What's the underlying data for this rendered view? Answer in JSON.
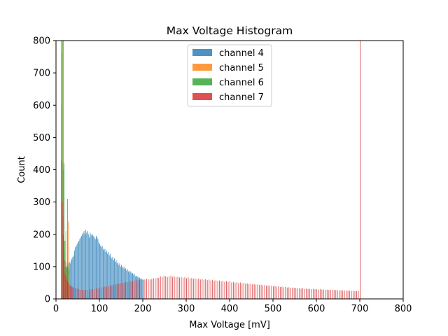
{
  "chart_data": {
    "type": "bar",
    "title": "Max Voltage Histogram",
    "xlabel": "Max Voltage [mV]",
    "ylabel": "Count",
    "xlim": [
      0,
      800
    ],
    "ylim": [
      0,
      800
    ],
    "xticks": [
      "0",
      "100",
      "200",
      "300",
      "400",
      "500",
      "600",
      "700",
      "800"
    ],
    "yticks": [
      "0",
      "100",
      "200",
      "300",
      "400",
      "500",
      "600",
      "700",
      "800"
    ],
    "grid": false,
    "legend_position": "upper center",
    "bin_width": 2,
    "series": [
      {
        "name": "channel 4",
        "color": "#1f77b4",
        "alpha": 0.8,
        "bins": [
          [
            12,
            600
          ],
          [
            14,
            420
          ],
          [
            16,
            260
          ],
          [
            18,
            150
          ],
          [
            20,
            100
          ],
          [
            22,
            95
          ],
          [
            24,
            100
          ],
          [
            26,
            105
          ],
          [
            28,
            110
          ],
          [
            30,
            115
          ],
          [
            32,
            110
          ],
          [
            34,
            120
          ],
          [
            36,
            125
          ],
          [
            38,
            130
          ],
          [
            40,
            135
          ],
          [
            42,
            150
          ],
          [
            44,
            160
          ],
          [
            46,
            165
          ],
          [
            48,
            170
          ],
          [
            50,
            175
          ],
          [
            52,
            180
          ],
          [
            54,
            185
          ],
          [
            56,
            190
          ],
          [
            58,
            195
          ],
          [
            60,
            200
          ],
          [
            62,
            205
          ],
          [
            64,
            210
          ],
          [
            66,
            200
          ],
          [
            68,
            215
          ],
          [
            70,
            205
          ],
          [
            72,
            210
          ],
          [
            74,
            200
          ],
          [
            76,
            190
          ],
          [
            78,
            205
          ],
          [
            80,
            200
          ],
          [
            82,
            195
          ],
          [
            84,
            200
          ],
          [
            86,
            195
          ],
          [
            88,
            190
          ],
          [
            90,
            185
          ],
          [
            92,
            195
          ],
          [
            94,
            190
          ],
          [
            96,
            185
          ],
          [
            98,
            175
          ],
          [
            100,
            170
          ],
          [
            102,
            165
          ],
          [
            104,
            160
          ],
          [
            106,
            165
          ],
          [
            108,
            155
          ],
          [
            110,
            150
          ],
          [
            112,
            155
          ],
          [
            114,
            145
          ],
          [
            116,
            150
          ],
          [
            118,
            140
          ],
          [
            120,
            145
          ],
          [
            122,
            135
          ],
          [
            124,
            140
          ],
          [
            126,
            130
          ],
          [
            128,
            125
          ],
          [
            130,
            130
          ],
          [
            132,
            120
          ],
          [
            134,
            125
          ],
          [
            136,
            115
          ],
          [
            138,
            120
          ],
          [
            140,
            110
          ],
          [
            142,
            115
          ],
          [
            144,
            105
          ],
          [
            146,
            110
          ],
          [
            148,
            100
          ],
          [
            150,
            105
          ],
          [
            152,
            100
          ],
          [
            154,
            95
          ],
          [
            156,
            100
          ],
          [
            158,
            92
          ],
          [
            160,
            95
          ],
          [
            162,
            88
          ],
          [
            164,
            92
          ],
          [
            166,
            85
          ],
          [
            168,
            88
          ],
          [
            170,
            82
          ],
          [
            172,
            85
          ],
          [
            174,
            78
          ],
          [
            176,
            80
          ],
          [
            178,
            75
          ],
          [
            180,
            78
          ],
          [
            182,
            70
          ],
          [
            184,
            72
          ],
          [
            186,
            68
          ],
          [
            188,
            70
          ],
          [
            190,
            65
          ],
          [
            192,
            66
          ],
          [
            194,
            62
          ],
          [
            196,
            64
          ],
          [
            198,
            60
          ],
          [
            200,
            58
          ]
        ]
      },
      {
        "name": "channel 5",
        "color": "#ff7f0e",
        "alpha": 0.8,
        "bins": [
          [
            12,
            760
          ],
          [
            14,
            800
          ],
          [
            16,
            400
          ],
          [
            18,
            180
          ],
          [
            20,
            120
          ],
          [
            22,
            210
          ],
          [
            24,
            90
          ],
          [
            26,
            85
          ],
          [
            28,
            240
          ],
          [
            30,
            80
          ]
        ]
      },
      {
        "name": "channel 6",
        "color": "#2ca02c",
        "alpha": 0.8,
        "bins": [
          [
            12,
            800
          ],
          [
            14,
            800
          ],
          [
            16,
            800
          ],
          [
            18,
            420
          ],
          [
            20,
            180
          ],
          [
            22,
            115
          ],
          [
            24,
            100
          ],
          [
            26,
            310
          ],
          [
            28,
            95
          ],
          [
            30,
            90
          ]
        ]
      },
      {
        "name": "channel 7",
        "color": "#d62728",
        "alpha": 0.8,
        "bins": [
          [
            12,
            430
          ],
          [
            14,
            300
          ],
          [
            16,
            200
          ],
          [
            18,
            120
          ],
          [
            20,
            80
          ],
          [
            22,
            70
          ],
          [
            24,
            60
          ],
          [
            26,
            55
          ],
          [
            28,
            50
          ],
          [
            30,
            45
          ],
          [
            32,
            42
          ],
          [
            34,
            40
          ],
          [
            36,
            38
          ],
          [
            38,
            36
          ],
          [
            40,
            35
          ],
          [
            44,
            34
          ],
          [
            48,
            32
          ],
          [
            52,
            30
          ],
          [
            56,
            28
          ],
          [
            60,
            28
          ],
          [
            64,
            27
          ],
          [
            68,
            28
          ],
          [
            72,
            28
          ],
          [
            76,
            29
          ],
          [
            80,
            30
          ],
          [
            84,
            30
          ],
          [
            88,
            31
          ],
          [
            92,
            32
          ],
          [
            96,
            33
          ],
          [
            100,
            34
          ],
          [
            104,
            35
          ],
          [
            108,
            36
          ],
          [
            112,
            38
          ],
          [
            116,
            38
          ],
          [
            120,
            40
          ],
          [
            124,
            40
          ],
          [
            128,
            42
          ],
          [
            132,
            44
          ],
          [
            136,
            45
          ],
          [
            140,
            46
          ],
          [
            144,
            47
          ],
          [
            148,
            48
          ],
          [
            152,
            50
          ],
          [
            156,
            50
          ],
          [
            160,
            52
          ],
          [
            164,
            52
          ],
          [
            168,
            53
          ],
          [
            172,
            54
          ],
          [
            176,
            55
          ],
          [
            180,
            56
          ],
          [
            184,
            57
          ],
          [
            188,
            58
          ],
          [
            192,
            58
          ],
          [
            196,
            59
          ],
          [
            200,
            60
          ],
          [
            204,
            60
          ],
          [
            208,
            62
          ],
          [
            212,
            61
          ],
          [
            216,
            60
          ],
          [
            220,
            62
          ],
          [
            224,
            64
          ],
          [
            228,
            63
          ],
          [
            232,
            66
          ],
          [
            236,
            65
          ],
          [
            240,
            70
          ],
          [
            244,
            68
          ],
          [
            248,
            72
          ],
          [
            252,
            70
          ],
          [
            256,
            68
          ],
          [
            260,
            70
          ],
          [
            264,
            72
          ],
          [
            268,
            68
          ],
          [
            272,
            70
          ],
          [
            276,
            67
          ],
          [
            280,
            69
          ],
          [
            284,
            66
          ],
          [
            288,
            68
          ],
          [
            292,
            65
          ],
          [
            296,
            67
          ],
          [
            300,
            64
          ],
          [
            304,
            66
          ],
          [
            308,
            63
          ],
          [
            312,
            65
          ],
          [
            316,
            62
          ],
          [
            320,
            64
          ],
          [
            324,
            61
          ],
          [
            328,
            63
          ],
          [
            332,
            60
          ],
          [
            336,
            62
          ],
          [
            340,
            59
          ],
          [
            344,
            61
          ],
          [
            348,
            58
          ],
          [
            352,
            60
          ],
          [
            356,
            57
          ],
          [
            360,
            59
          ],
          [
            364,
            56
          ],
          [
            368,
            58
          ],
          [
            372,
            55
          ],
          [
            376,
            57
          ],
          [
            380,
            54
          ],
          [
            384,
            56
          ],
          [
            388,
            53
          ],
          [
            392,
            55
          ],
          [
            396,
            52
          ],
          [
            400,
            54
          ],
          [
            404,
            51
          ],
          [
            408,
            53
          ],
          [
            412,
            50
          ],
          [
            416,
            52
          ],
          [
            420,
            49
          ],
          [
            424,
            51
          ],
          [
            428,
            48
          ],
          [
            432,
            50
          ],
          [
            436,
            47
          ],
          [
            440,
            48
          ],
          [
            444,
            46
          ],
          [
            448,
            47
          ],
          [
            452,
            45
          ],
          [
            456,
            46
          ],
          [
            460,
            44
          ],
          [
            464,
            45
          ],
          [
            468,
            43
          ],
          [
            472,
            44
          ],
          [
            476,
            42
          ],
          [
            480,
            43
          ],
          [
            484,
            41
          ],
          [
            488,
            42
          ],
          [
            492,
            40
          ],
          [
            496,
            41
          ],
          [
            500,
            39
          ],
          [
            504,
            40
          ],
          [
            508,
            38
          ],
          [
            512,
            39
          ],
          [
            516,
            37
          ],
          [
            520,
            38
          ],
          [
            524,
            36
          ],
          [
            528,
            37
          ],
          [
            532,
            35
          ],
          [
            536,
            36
          ],
          [
            540,
            34
          ],
          [
            544,
            35
          ],
          [
            548,
            34
          ],
          [
            552,
            34
          ],
          [
            556,
            33
          ],
          [
            560,
            33
          ],
          [
            564,
            32
          ],
          [
            568,
            33
          ],
          [
            572,
            31
          ],
          [
            576,
            32
          ],
          [
            580,
            31
          ],
          [
            584,
            31
          ],
          [
            588,
            30
          ],
          [
            592,
            31
          ],
          [
            596,
            30
          ],
          [
            600,
            30
          ],
          [
            604,
            29
          ],
          [
            608,
            30
          ],
          [
            612,
            29
          ],
          [
            616,
            29
          ],
          [
            620,
            28
          ],
          [
            624,
            29
          ],
          [
            628,
            28
          ],
          [
            632,
            28
          ],
          [
            636,
            27
          ],
          [
            640,
            28
          ],
          [
            644,
            27
          ],
          [
            648,
            27
          ],
          [
            652,
            26
          ],
          [
            656,
            27
          ],
          [
            660,
            26
          ],
          [
            664,
            26
          ],
          [
            668,
            25
          ],
          [
            672,
            26
          ],
          [
            676,
            25
          ],
          [
            680,
            25
          ],
          [
            684,
            24
          ],
          [
            688,
            25
          ],
          [
            692,
            24
          ],
          [
            696,
            25
          ],
          [
            700,
            800
          ]
        ]
      }
    ]
  }
}
